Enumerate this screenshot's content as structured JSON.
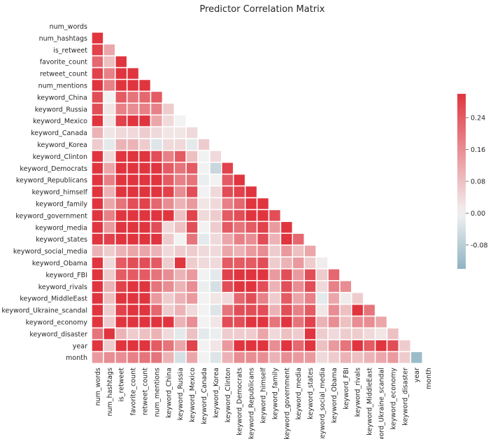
{
  "chart_data": {
    "type": "heatmap",
    "title": "Predictor Correlation Matrix",
    "labels": [
      "num_words",
      "num_hashtags",
      "is_retweet",
      "favorite_count",
      "retweet_count",
      "num_mentions",
      "keyword_China",
      "keyword_Russia",
      "keyword_Mexico",
      "keyword_Canada",
      "keyword_Korea",
      "keyword_Clinton",
      "keyword_Democrats",
      "keyword_Republicans",
      "keyword_himself",
      "keyword_family",
      "keyword_government",
      "keyword_media",
      "keyword_states",
      "keyword_social_media",
      "keyword_Obama",
      "keyword_FBI",
      "keyword_rivals",
      "keyword_MiddleEast",
      "keyword_Ukraine_scandal",
      "keyword_economy",
      "keyword_disaster",
      "year",
      "month"
    ],
    "mask": "upper-triangle-and-diagonal",
    "value_range": [
      -0.14,
      0.3
    ],
    "colorbar_ticks": [
      "0.24",
      "0.16",
      "0.08",
      "0.00",
      "-0.08"
    ],
    "colorbar_tick_values": [
      0.24,
      0.16,
      0.08,
      0.0,
      -0.08
    ],
    "colors": {
      "negative": "#8fb3c2",
      "zero": "#f2f2f2",
      "positive": "#e0353f",
      "grid": "#ffffff"
    },
    "rows": [
      [],
      [
        0.3
      ],
      [
        0.28,
        0.12
      ],
      [
        0.22,
        0.08,
        0.3
      ],
      [
        0.28,
        0.18,
        0.3,
        0.3
      ],
      [
        0.3,
        0.18,
        0.3,
        0.3,
        0.3
      ],
      [
        0.26,
        0.0,
        0.24,
        0.2,
        0.22,
        0.24
      ],
      [
        0.26,
        0.02,
        0.18,
        0.16,
        0.18,
        0.18,
        0.06
      ],
      [
        0.3,
        0.02,
        0.28,
        0.3,
        0.3,
        0.12,
        0.04,
        0.0
      ],
      [
        0.1,
        0.02,
        0.04,
        0.04,
        0.06,
        0.04,
        0.02,
        0.02,
        0.04
      ],
      [
        0.06,
        -0.02,
        0.1,
        0.1,
        0.06,
        -0.03,
        0.04,
        0.04,
        -0.02,
        0.06
      ],
      [
        0.3,
        0.04,
        0.3,
        0.3,
        0.3,
        0.26,
        0.18,
        0.24,
        0.08,
        0.0,
        0.04
      ],
      [
        0.3,
        0.12,
        0.3,
        0.3,
        0.3,
        0.3,
        0.24,
        0.2,
        0.24,
        0.0,
        -0.06,
        0.28
      ],
      [
        0.3,
        0.18,
        0.3,
        0.3,
        0.3,
        0.3,
        0.24,
        0.18,
        0.2,
        -0.01,
        0.0,
        0.24,
        0.3
      ],
      [
        0.3,
        0.1,
        0.3,
        0.3,
        0.3,
        0.3,
        0.28,
        0.16,
        0.26,
        0.0,
        0.04,
        0.26,
        0.28,
        0.3
      ],
      [
        0.3,
        0.12,
        0.2,
        0.26,
        0.28,
        0.22,
        0.16,
        0.1,
        0.14,
        0.02,
        0.04,
        0.18,
        0.22,
        0.3,
        0.3
      ],
      [
        0.3,
        0.18,
        0.3,
        0.3,
        0.3,
        0.3,
        0.3,
        0.08,
        0.28,
        0.04,
        0.06,
        0.24,
        0.26,
        0.3,
        0.3,
        0.26
      ],
      [
        0.3,
        0.14,
        0.3,
        0.3,
        0.3,
        0.26,
        0.04,
        0.08,
        0.26,
        0.0,
        0.06,
        0.24,
        0.2,
        0.24,
        0.28,
        0.14,
        0.3
      ],
      [
        0.3,
        0.28,
        0.3,
        0.3,
        0.3,
        0.3,
        0.06,
        0.0,
        0.2,
        -0.02,
        0.04,
        0.12,
        0.18,
        0.16,
        0.26,
        0.1,
        0.3,
        0.22
      ],
      [
        0.1,
        0.06,
        0.1,
        0.12,
        0.12,
        0.1,
        0.04,
        0.06,
        0.06,
        0.04,
        0.04,
        0.12,
        0.1,
        0.14,
        0.16,
        0.06,
        0.14,
        0.08,
        0.12
      ],
      [
        0.3,
        0.04,
        0.24,
        0.26,
        0.26,
        0.24,
        0.06,
        0.3,
        0.06,
        0.04,
        0.04,
        0.24,
        0.24,
        0.24,
        0.26,
        0.06,
        0.1,
        0.14,
        0.06,
        0.01
      ],
      [
        0.3,
        0.06,
        0.24,
        0.24,
        0.24,
        0.2,
        0.16,
        0.1,
        0.14,
        0.0,
        -0.02,
        0.28,
        0.3,
        0.3,
        0.3,
        0.14,
        0.26,
        0.14,
        0.26,
        0.06,
        0.22
      ],
      [
        0.3,
        0.1,
        0.28,
        0.3,
        0.3,
        0.2,
        0.16,
        0.1,
        0.16,
        -0.01,
        -0.04,
        0.26,
        0.3,
        0.3,
        0.26,
        0.1,
        0.26,
        0.16,
        0.26,
        0.04,
        0.18,
        0.16
      ],
      [
        0.3,
        0.08,
        0.3,
        0.3,
        0.3,
        0.14,
        0.06,
        0.1,
        0.14,
        0.0,
        0.02,
        0.04,
        0.22,
        0.26,
        0.18,
        0.06,
        0.24,
        0.12,
        0.18,
        -0.02,
        0.12,
        0.01,
        0.06
      ],
      [
        0.3,
        0.06,
        0.28,
        0.3,
        0.3,
        0.22,
        0.06,
        0.1,
        0.04,
        0.0,
        -0.03,
        0.2,
        0.26,
        0.26,
        0.26,
        0.1,
        0.26,
        0.18,
        0.24,
        0.02,
        0.16,
        0.08,
        0.3,
        0.2
      ],
      [
        0.3,
        0.06,
        0.3,
        0.3,
        0.3,
        0.3,
        0.3,
        0.1,
        0.16,
        0.0,
        0.02,
        0.26,
        0.26,
        0.3,
        0.3,
        0.2,
        0.3,
        0.2,
        0.28,
        0.1,
        0.16,
        0.08,
        0.16,
        0.16,
        0.12
      ],
      [
        0.2,
        0.3,
        0.1,
        0.06,
        0.08,
        0.1,
        0.04,
        -0.02,
        0.08,
        -0.02,
        -0.01,
        0.06,
        0.06,
        0.06,
        0.12,
        0.04,
        0.08,
        0.06,
        0.3,
        0.06,
        0.04,
        0.06,
        0.06,
        0.04,
        0.02,
        0.08
      ],
      [
        0.3,
        0.06,
        0.3,
        0.3,
        0.3,
        0.24,
        0.2,
        0.12,
        0.28,
        0.0,
        0.02,
        0.14,
        0.3,
        0.3,
        0.3,
        0.16,
        0.3,
        0.22,
        0.3,
        0.08,
        0.14,
        0.2,
        0.3,
        0.24,
        0.3,
        0.26,
        0.06
      ],
      [
        0.14,
        0.16,
        0.16,
        0.18,
        0.2,
        0.2,
        0.1,
        -0.04,
        0.12,
        0.0,
        -0.03,
        0.1,
        0.16,
        0.16,
        0.16,
        0.1,
        0.16,
        0.14,
        0.14,
        0.04,
        0.06,
        0.1,
        0.08,
        0.1,
        0.12,
        0.14,
        0.06,
        -0.12
      ]
    ]
  }
}
